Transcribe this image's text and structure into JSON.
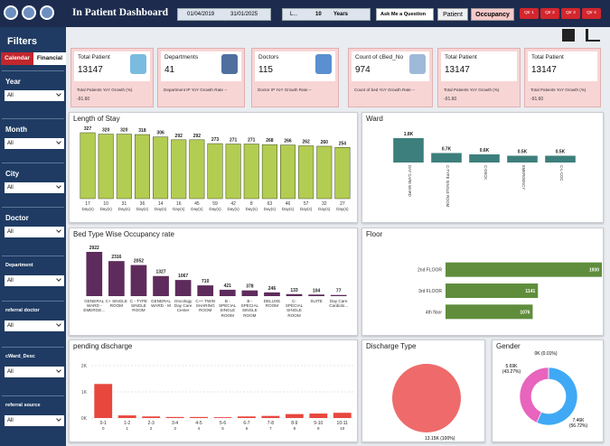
{
  "header": {
    "title": "In Patient Dashboard",
    "date_from": "01/04/2019",
    "date_to": "31/01/2025",
    "dropdown": "L...",
    "years_count": "10",
    "years_label": "Years",
    "ask": "Ask Me a Question",
    "tabs": [
      "Patient",
      "Occupancy"
    ],
    "quarters": [
      "Qtr 1",
      "Qtr 2",
      "Qtr 3",
      "Qtr 4"
    ]
  },
  "sidebar": {
    "title": "Filters",
    "tabs": [
      "Calendar",
      "Financial"
    ],
    "filters": [
      {
        "label": "Year",
        "value": "All"
      },
      {
        "label": "Month",
        "value": "All"
      },
      {
        "label": "City",
        "value": "All"
      },
      {
        "label": "Doctor",
        "value": "All"
      },
      {
        "label": "Department",
        "value": "All"
      },
      {
        "label": "referral doctor",
        "value": "All"
      },
      {
        "label": "cWard_Desc",
        "value": "All"
      },
      {
        "label": "referral source",
        "value": "All"
      }
    ]
  },
  "kpis": [
    {
      "title": "Total Patient",
      "value": 13147,
      "sub": "Total Patients YoY Growth (%)",
      "sub_value": "-91.60"
    },
    {
      "title": "Departments",
      "value": 41,
      "sub": "Department IP YoY Growth Rate --"
    },
    {
      "title": "Doctors",
      "value": 115,
      "sub": "Doctor IP YoY Growth Rate --"
    },
    {
      "title": "Count of cBed_No",
      "value": 974,
      "sub": "Count of bed YoY Growth Rate --"
    },
    {
      "title": "Total Patient",
      "value": 13147,
      "sub": "Total Patients YoY Growth (%)",
      "sub_value": "-91.60"
    },
    {
      "title": "Total Patient",
      "value": 13147,
      "sub": "Total Patients YoY Growth (%)",
      "sub_value": "-91.60"
    }
  ],
  "chart_data": [
    {
      "type": "bar",
      "title": "Length of Stay",
      "x_unit": "Day(s)",
      "color": "#b3cc52",
      "categories": [
        "17",
        "10",
        "31",
        "36",
        "14",
        "16",
        "45",
        "59",
        "42",
        "8",
        "63",
        "46",
        "57",
        "32",
        "27"
      ],
      "values": [
        327,
        320,
        320,
        318,
        306,
        292,
        292,
        273,
        271,
        271,
        268,
        266,
        262,
        260,
        254
      ]
    },
    {
      "type": "bar",
      "title": "Ward",
      "color": "#3c7f7c",
      "categories": [
        "DAY CARE WARD",
        "C-TYPE SINGLE ROOM",
        "C-DECK",
        "EMERGENCY",
        "C-L-COC"
      ],
      "values": [
        1800,
        700,
        600,
        500,
        500
      ],
      "value_labels": [
        "1.8K",
        "0.7K",
        "0.6K",
        "0.5K",
        "0.5K"
      ]
    },
    {
      "type": "bar",
      "title": "Bed Type Wise Occupancy rate",
      "color": "#5e2c5c",
      "categories": [
        "GENERAL WARD - EMERGE...",
        "C+ SINGLE ROOM",
        "C - TYPE SINGLE ROOM",
        "GENERAL WARD - M",
        "Oncology Day Care Center",
        "C++ TWIN SHARING ROOM",
        "B - SPECIAL SINGLE ROOM",
        "B - SPECIAL SINGLE ROOM",
        "DELUXE ROOM",
        "C- SPECIAL SINGLE ROOM",
        "SUITE",
        "Day Care Cardiolo..."
      ],
      "values": [
        2922,
        2316,
        2052,
        1327,
        1067,
        710,
        421,
        378,
        246,
        133,
        104,
        77
      ]
    },
    {
      "type": "bar",
      "orientation": "horizontal",
      "title": "Floor",
      "color": "#5f8d3c",
      "categories": [
        "2nd FLOOR",
        "3rd FLOOR",
        "4th floor"
      ],
      "values": [
        1930,
        1141,
        1076
      ]
    },
    {
      "type": "bar",
      "title": "pending discharge",
      "color": "#e8473d",
      "categories": [
        "0-1",
        "1-2",
        "2-3",
        "3-4",
        "4-5",
        "5-6",
        "6-7",
        "7-8",
        "8-9",
        "9-10",
        "10-11"
      ],
      "sub_labels": [
        "0",
        "1",
        "2",
        "3",
        "4",
        "5",
        "6",
        "7",
        "8",
        "9",
        "10"
      ],
      "values": [
        1300,
        100,
        60,
        40,
        40,
        30,
        60,
        80,
        150,
        170,
        200
      ],
      "ylim": [
        0,
        2000
      ],
      "yticks": [
        {
          "value": 0,
          "label": "0K"
        },
        {
          "value": 1000,
          "label": "1K"
        },
        {
          "value": 2000,
          "label": "2K"
        }
      ],
      "grid": true
    },
    {
      "type": "pie",
      "title": "Discharge Type",
      "colors": [
        "#ef6b6b"
      ],
      "values": [
        13150
      ],
      "value_labels": [
        "13.15K (100%)"
      ]
    },
    {
      "type": "donut",
      "title": "Gender",
      "colors": [
        "#3fa9f5",
        "#e864bd",
        "#9aa0a6"
      ],
      "values": [
        7460,
        5690,
        0
      ],
      "value_labels": [
        "7.46K (56.72%)",
        "5.69K (43.27%)",
        "0K (0.01%)"
      ]
    }
  ]
}
